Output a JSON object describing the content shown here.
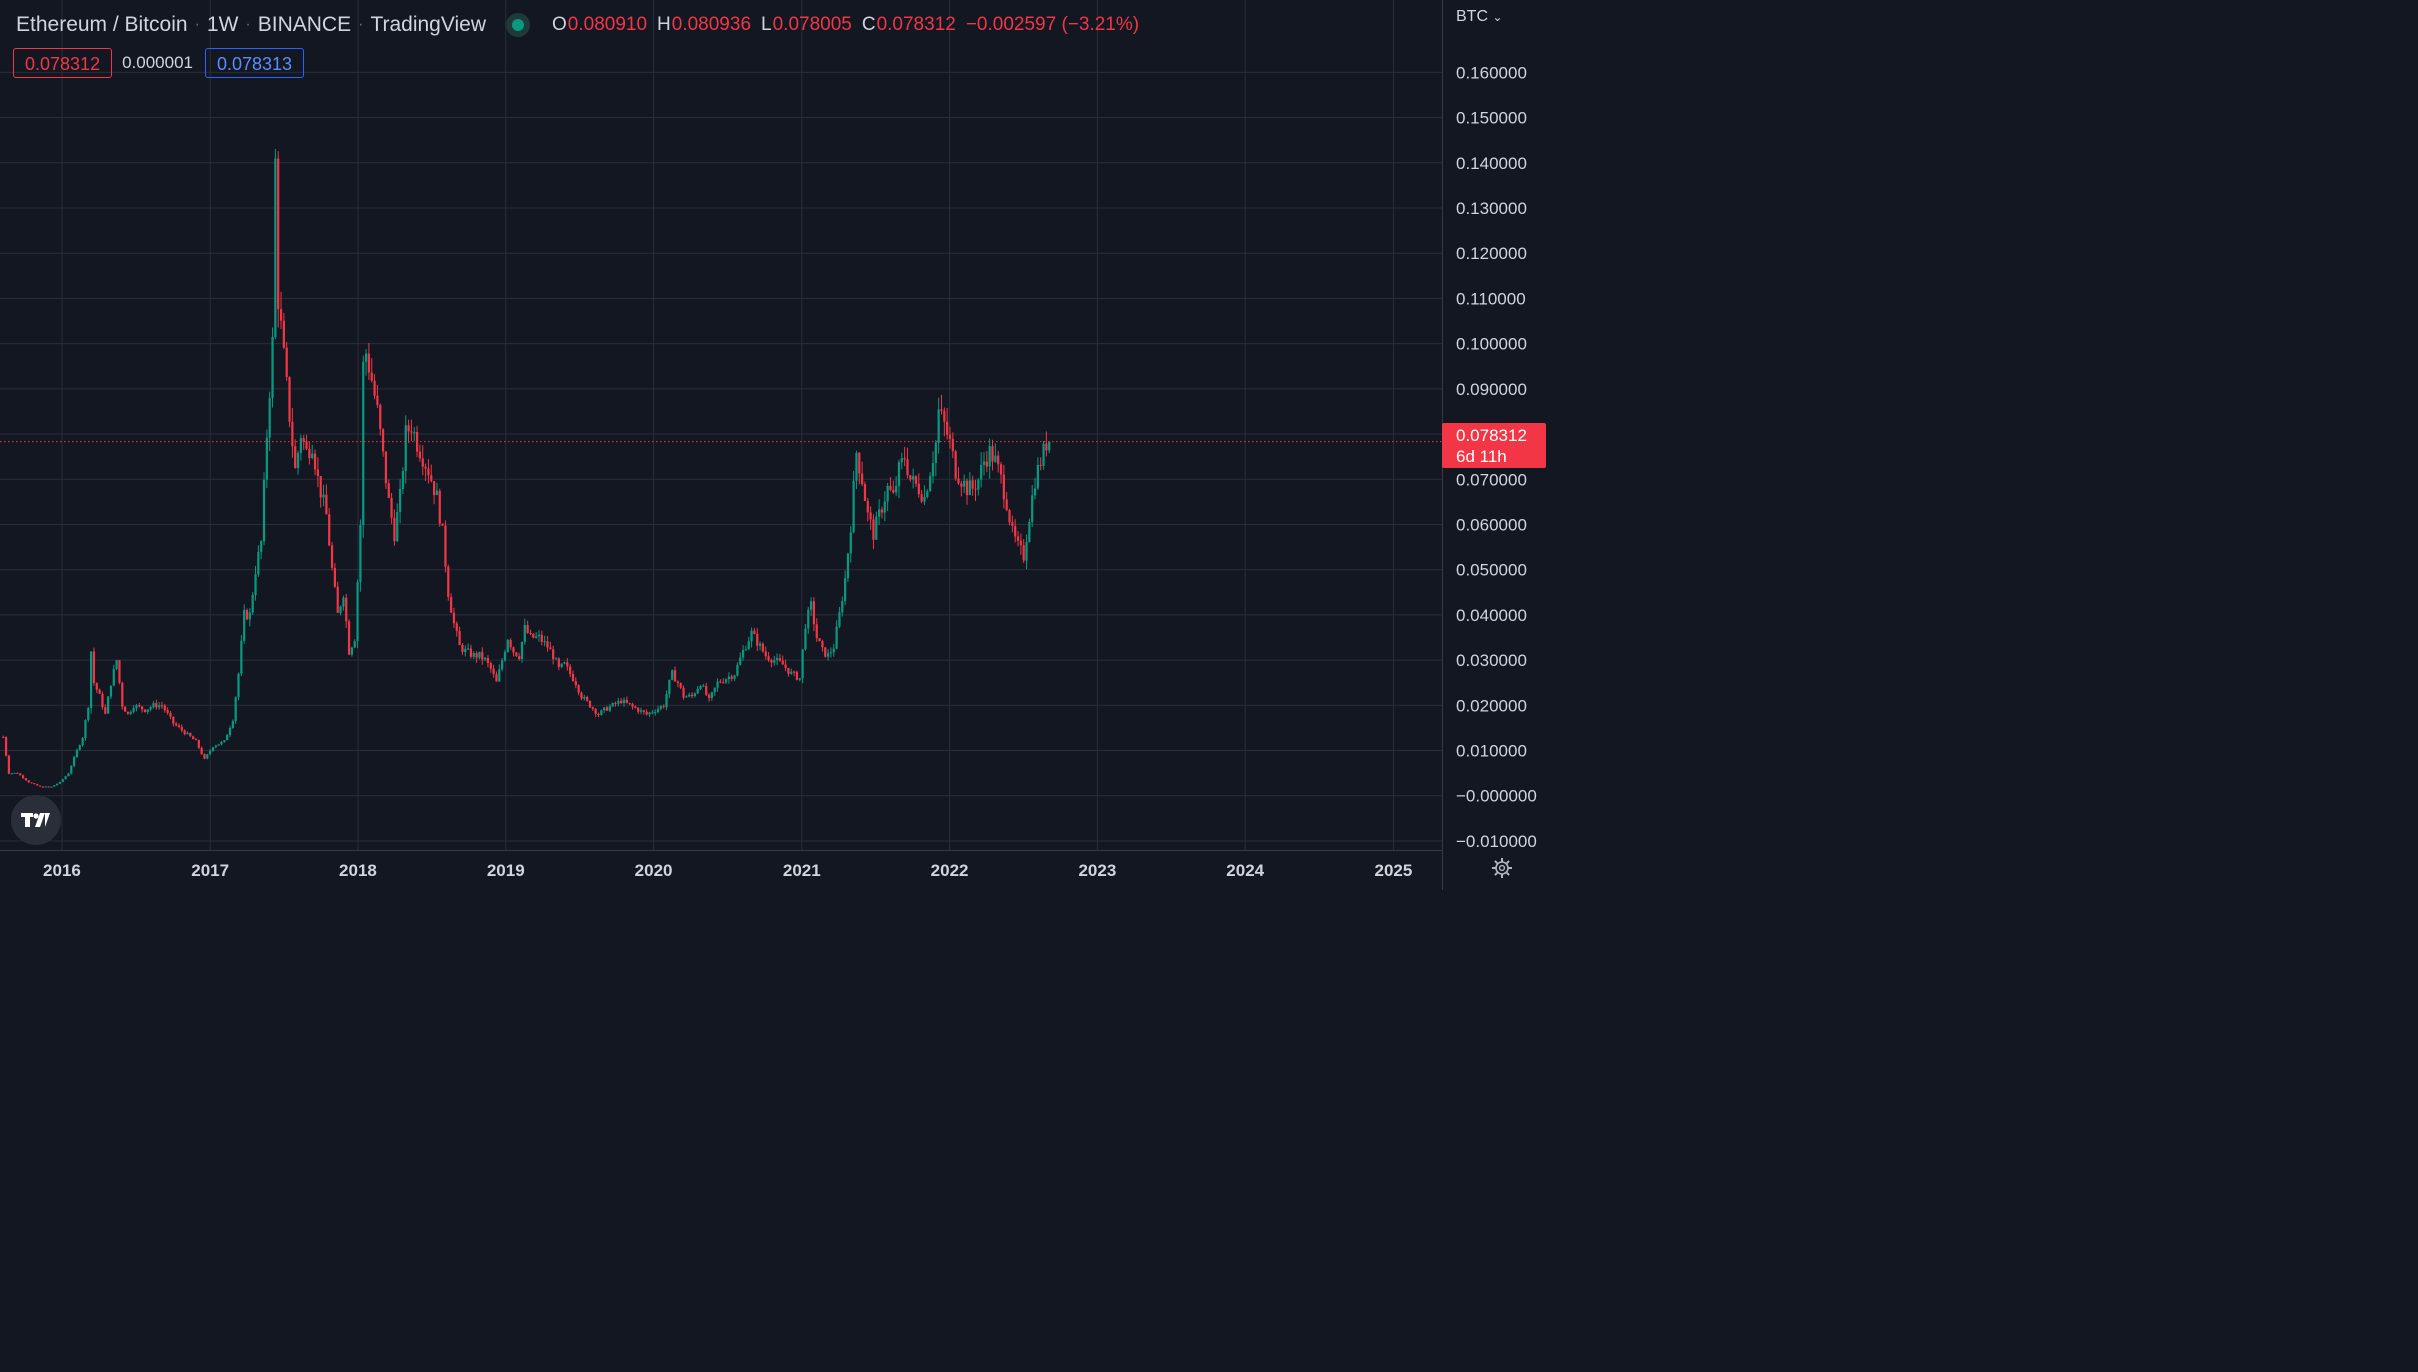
{
  "header": {
    "symbol": "Ethereum / Bitcoin",
    "interval": "1W",
    "exchange": "BINANCE",
    "source": "TradingView",
    "ohlc": {
      "o_label": "O",
      "o": "0.080910",
      "h_label": "H",
      "h": "0.080936",
      "l_label": "L",
      "l": "0.078005",
      "c_label": "C",
      "c": "0.078312",
      "change": "−0.002597 (−3.21%)"
    },
    "bid": "0.078312",
    "spread": "0.000001",
    "ask": "0.078313",
    "status_color": "#089981"
  },
  "axis_unit": "BTC",
  "last_price_tag": {
    "price": "0.078312",
    "countdown": "6d 11h"
  },
  "colors": {
    "up": "#089981",
    "down": "#f23645",
    "background": "#131722",
    "grid": "#2a2e39"
  },
  "icons": [
    "tradingview-logo-icon",
    "settings-gear-icon",
    "chevron-down-icon"
  ],
  "chart_data": {
    "type": "candlestick",
    "title": "",
    "xlabel": "",
    "ylabel": "",
    "interval": "1W",
    "ylim": [
      -0.012,
      0.176
    ],
    "xlim": [
      "2015-08-01",
      "2025-05-01"
    ],
    "y_ticks": [
      "0.160000",
      "0.150000",
      "0.140000",
      "0.130000",
      "0.120000",
      "0.110000",
      "0.100000",
      "0.090000",
      "0.080000",
      "0.070000",
      "0.060000",
      "0.050000",
      "0.040000",
      "0.030000",
      "0.020000",
      "0.010000",
      "−0.000000",
      "−0.010000"
    ],
    "y_tick_values": [
      0.16,
      0.15,
      0.14,
      0.13,
      0.12,
      0.11,
      0.1,
      0.09,
      0.08,
      0.07,
      0.06,
      0.05,
      0.04,
      0.03,
      0.02,
      0.01,
      0.0,
      -0.01
    ],
    "x_ticks": [
      "2016",
      "2017",
      "2018",
      "2019",
      "2020",
      "2021",
      "2022",
      "2023",
      "2024",
      "2025"
    ],
    "x_tick_values": [
      "2016-01-01",
      "2017-01-01",
      "2018-01-01",
      "2019-01-01",
      "2020-01-01",
      "2021-01-01",
      "2022-01-01",
      "2023-01-01",
      "2024-01-01",
      "2025-01-01"
    ],
    "last_price": 0.078312,
    "grid": true,
    "series_close": [
      [
        "2015-08-09",
        0.013
      ],
      [
        "2015-08-23",
        0.005
      ],
      [
        "2015-09-13",
        0.005
      ],
      [
        "2015-10-11",
        0.003
      ],
      [
        "2015-11-08",
        0.002
      ],
      [
        "2015-12-06",
        0.002
      ],
      [
        "2015-12-27",
        0.003
      ],
      [
        "2016-01-17",
        0.005
      ],
      [
        "2016-02-07",
        0.01
      ],
      [
        "2016-02-21",
        0.013
      ],
      [
        "2016-03-06",
        0.02
      ],
      [
        "2016-03-13",
        0.032
      ],
      [
        "2016-03-20",
        0.025
      ],
      [
        "2016-04-03",
        0.022
      ],
      [
        "2016-04-17",
        0.018
      ],
      [
        "2016-05-01",
        0.025
      ],
      [
        "2016-05-15",
        0.03
      ],
      [
        "2016-05-29",
        0.02
      ],
      [
        "2016-06-12",
        0.018
      ],
      [
        "2016-06-26",
        0.02
      ],
      [
        "2016-07-24",
        0.019
      ],
      [
        "2016-08-14",
        0.02
      ],
      [
        "2016-09-04",
        0.02
      ],
      [
        "2016-10-02",
        0.016
      ],
      [
        "2016-10-30",
        0.014
      ],
      [
        "2016-11-27",
        0.012
      ],
      [
        "2016-12-18",
        0.008
      ],
      [
        "2017-01-08",
        0.011
      ],
      [
        "2017-02-05",
        0.012
      ],
      [
        "2017-02-26",
        0.017
      ],
      [
        "2017-03-12",
        0.027
      ],
      [
        "2017-03-26",
        0.04
      ],
      [
        "2017-04-09",
        0.04
      ],
      [
        "2017-04-23",
        0.05
      ],
      [
        "2017-05-07",
        0.056
      ],
      [
        "2017-05-21",
        0.08
      ],
      [
        "2017-06-04",
        0.1
      ],
      [
        "2017-06-11",
        0.14
      ],
      [
        "2017-06-18",
        0.11
      ],
      [
        "2017-07-02",
        0.097
      ],
      [
        "2017-07-16",
        0.084
      ],
      [
        "2017-07-30",
        0.072
      ],
      [
        "2017-08-13",
        0.08
      ],
      [
        "2017-08-27",
        0.076
      ],
      [
        "2017-09-10",
        0.078
      ],
      [
        "2017-09-24",
        0.07
      ],
      [
        "2017-10-15",
        0.062
      ],
      [
        "2017-10-29",
        0.05
      ],
      [
        "2017-11-12",
        0.04
      ],
      [
        "2017-11-26",
        0.045
      ],
      [
        "2017-12-10",
        0.032
      ],
      [
        "2017-12-24",
        0.035
      ],
      [
        "2018-01-07",
        0.06
      ],
      [
        "2018-01-14",
        0.095
      ],
      [
        "2018-01-21",
        0.098
      ],
      [
        "2018-02-04",
        0.092
      ],
      [
        "2018-02-18",
        0.085
      ],
      [
        "2018-03-04",
        0.075
      ],
      [
        "2018-03-18",
        0.065
      ],
      [
        "2018-04-01",
        0.058
      ],
      [
        "2018-04-15",
        0.066
      ],
      [
        "2018-04-29",
        0.08
      ],
      [
        "2018-05-13",
        0.082
      ],
      [
        "2018-05-27",
        0.078
      ],
      [
        "2018-06-10",
        0.075
      ],
      [
        "2018-06-24",
        0.072
      ],
      [
        "2018-07-15",
        0.066
      ],
      [
        "2018-07-29",
        0.058
      ],
      [
        "2018-08-12",
        0.045
      ],
      [
        "2018-08-26",
        0.038
      ],
      [
        "2018-09-09",
        0.033
      ],
      [
        "2018-09-23",
        0.032
      ],
      [
        "2018-10-14",
        0.031
      ],
      [
        "2018-10-28",
        0.031
      ],
      [
        "2018-11-11",
        0.03
      ],
      [
        "2018-11-25",
        0.028
      ],
      [
        "2018-12-09",
        0.025
      ],
      [
        "2018-12-23",
        0.03
      ],
      [
        "2019-01-06",
        0.035
      ],
      [
        "2019-01-20",
        0.032
      ],
      [
        "2019-02-03",
        0.031
      ],
      [
        "2019-02-17",
        0.037
      ],
      [
        "2019-03-03",
        0.035
      ],
      [
        "2019-03-24",
        0.035
      ],
      [
        "2019-04-14",
        0.033
      ],
      [
        "2019-04-28",
        0.031
      ],
      [
        "2019-05-12",
        0.028
      ],
      [
        "2019-05-26",
        0.029
      ],
      [
        "2019-06-09",
        0.027
      ],
      [
        "2019-06-23",
        0.025
      ],
      [
        "2019-07-07",
        0.022
      ],
      [
        "2019-07-28",
        0.02
      ],
      [
        "2019-08-18",
        0.018
      ],
      [
        "2019-09-01",
        0.019
      ],
      [
        "2019-09-22",
        0.02
      ],
      [
        "2019-10-13",
        0.021
      ],
      [
        "2019-11-03",
        0.02
      ],
      [
        "2019-11-24",
        0.019
      ],
      [
        "2019-12-15",
        0.018
      ],
      [
        "2020-01-05",
        0.019
      ],
      [
        "2020-01-26",
        0.02
      ],
      [
        "2020-02-09",
        0.025
      ],
      [
        "2020-02-16",
        0.027
      ],
      [
        "2020-03-01",
        0.025
      ],
      [
        "2020-03-15",
        0.022
      ],
      [
        "2020-04-05",
        0.022
      ],
      [
        "2020-04-26",
        0.025
      ],
      [
        "2020-05-17",
        0.021
      ],
      [
        "2020-06-07",
        0.025
      ],
      [
        "2020-06-28",
        0.026
      ],
      [
        "2020-07-19",
        0.027
      ],
      [
        "2020-08-09",
        0.032
      ],
      [
        "2020-08-30",
        0.036
      ],
      [
        "2020-09-13",
        0.034
      ],
      [
        "2020-10-04",
        0.031
      ],
      [
        "2020-10-25",
        0.03
      ],
      [
        "2020-11-15",
        0.029
      ],
      [
        "2020-12-06",
        0.027
      ],
      [
        "2020-12-27",
        0.026
      ],
      [
        "2021-01-10",
        0.038
      ],
      [
        "2021-01-24",
        0.042
      ],
      [
        "2021-02-07",
        0.035
      ],
      [
        "2021-02-21",
        0.032
      ],
      [
        "2021-03-07",
        0.031
      ],
      [
        "2021-03-21",
        0.033
      ],
      [
        "2021-04-04",
        0.04
      ],
      [
        "2021-04-18",
        0.048
      ],
      [
        "2021-05-02",
        0.06
      ],
      [
        "2021-05-16",
        0.076
      ],
      [
        "2021-05-30",
        0.07
      ],
      [
        "2021-06-13",
        0.062
      ],
      [
        "2021-06-27",
        0.058
      ],
      [
        "2021-07-11",
        0.062
      ],
      [
        "2021-08-01",
        0.068
      ],
      [
        "2021-08-15",
        0.066
      ],
      [
        "2021-08-29",
        0.072
      ],
      [
        "2021-09-12",
        0.075
      ],
      [
        "2021-09-26",
        0.07
      ],
      [
        "2021-10-17",
        0.068
      ],
      [
        "2021-10-31",
        0.066
      ],
      [
        "2021-11-14",
        0.072
      ],
      [
        "2021-11-28",
        0.078
      ],
      [
        "2021-12-05",
        0.085
      ],
      [
        "2021-12-19",
        0.082
      ],
      [
        "2022-01-02",
        0.078
      ],
      [
        "2022-01-16",
        0.072
      ],
      [
        "2022-01-30",
        0.07
      ],
      [
        "2022-02-13",
        0.068
      ],
      [
        "2022-02-27",
        0.068
      ],
      [
        "2022-03-13",
        0.07
      ],
      [
        "2022-03-27",
        0.074
      ],
      [
        "2022-04-10",
        0.076
      ],
      [
        "2022-04-24",
        0.074
      ],
      [
        "2022-05-08",
        0.07
      ],
      [
        "2022-05-22",
        0.065
      ],
      [
        "2022-06-05",
        0.058
      ],
      [
        "2022-06-19",
        0.055
      ],
      [
        "2022-07-03",
        0.053
      ],
      [
        "2022-07-17",
        0.062
      ],
      [
        "2022-07-31",
        0.07
      ],
      [
        "2022-08-14",
        0.074
      ],
      [
        "2022-08-28",
        0.078
      ],
      [
        "2022-09-04",
        0.078312
      ]
    ]
  }
}
